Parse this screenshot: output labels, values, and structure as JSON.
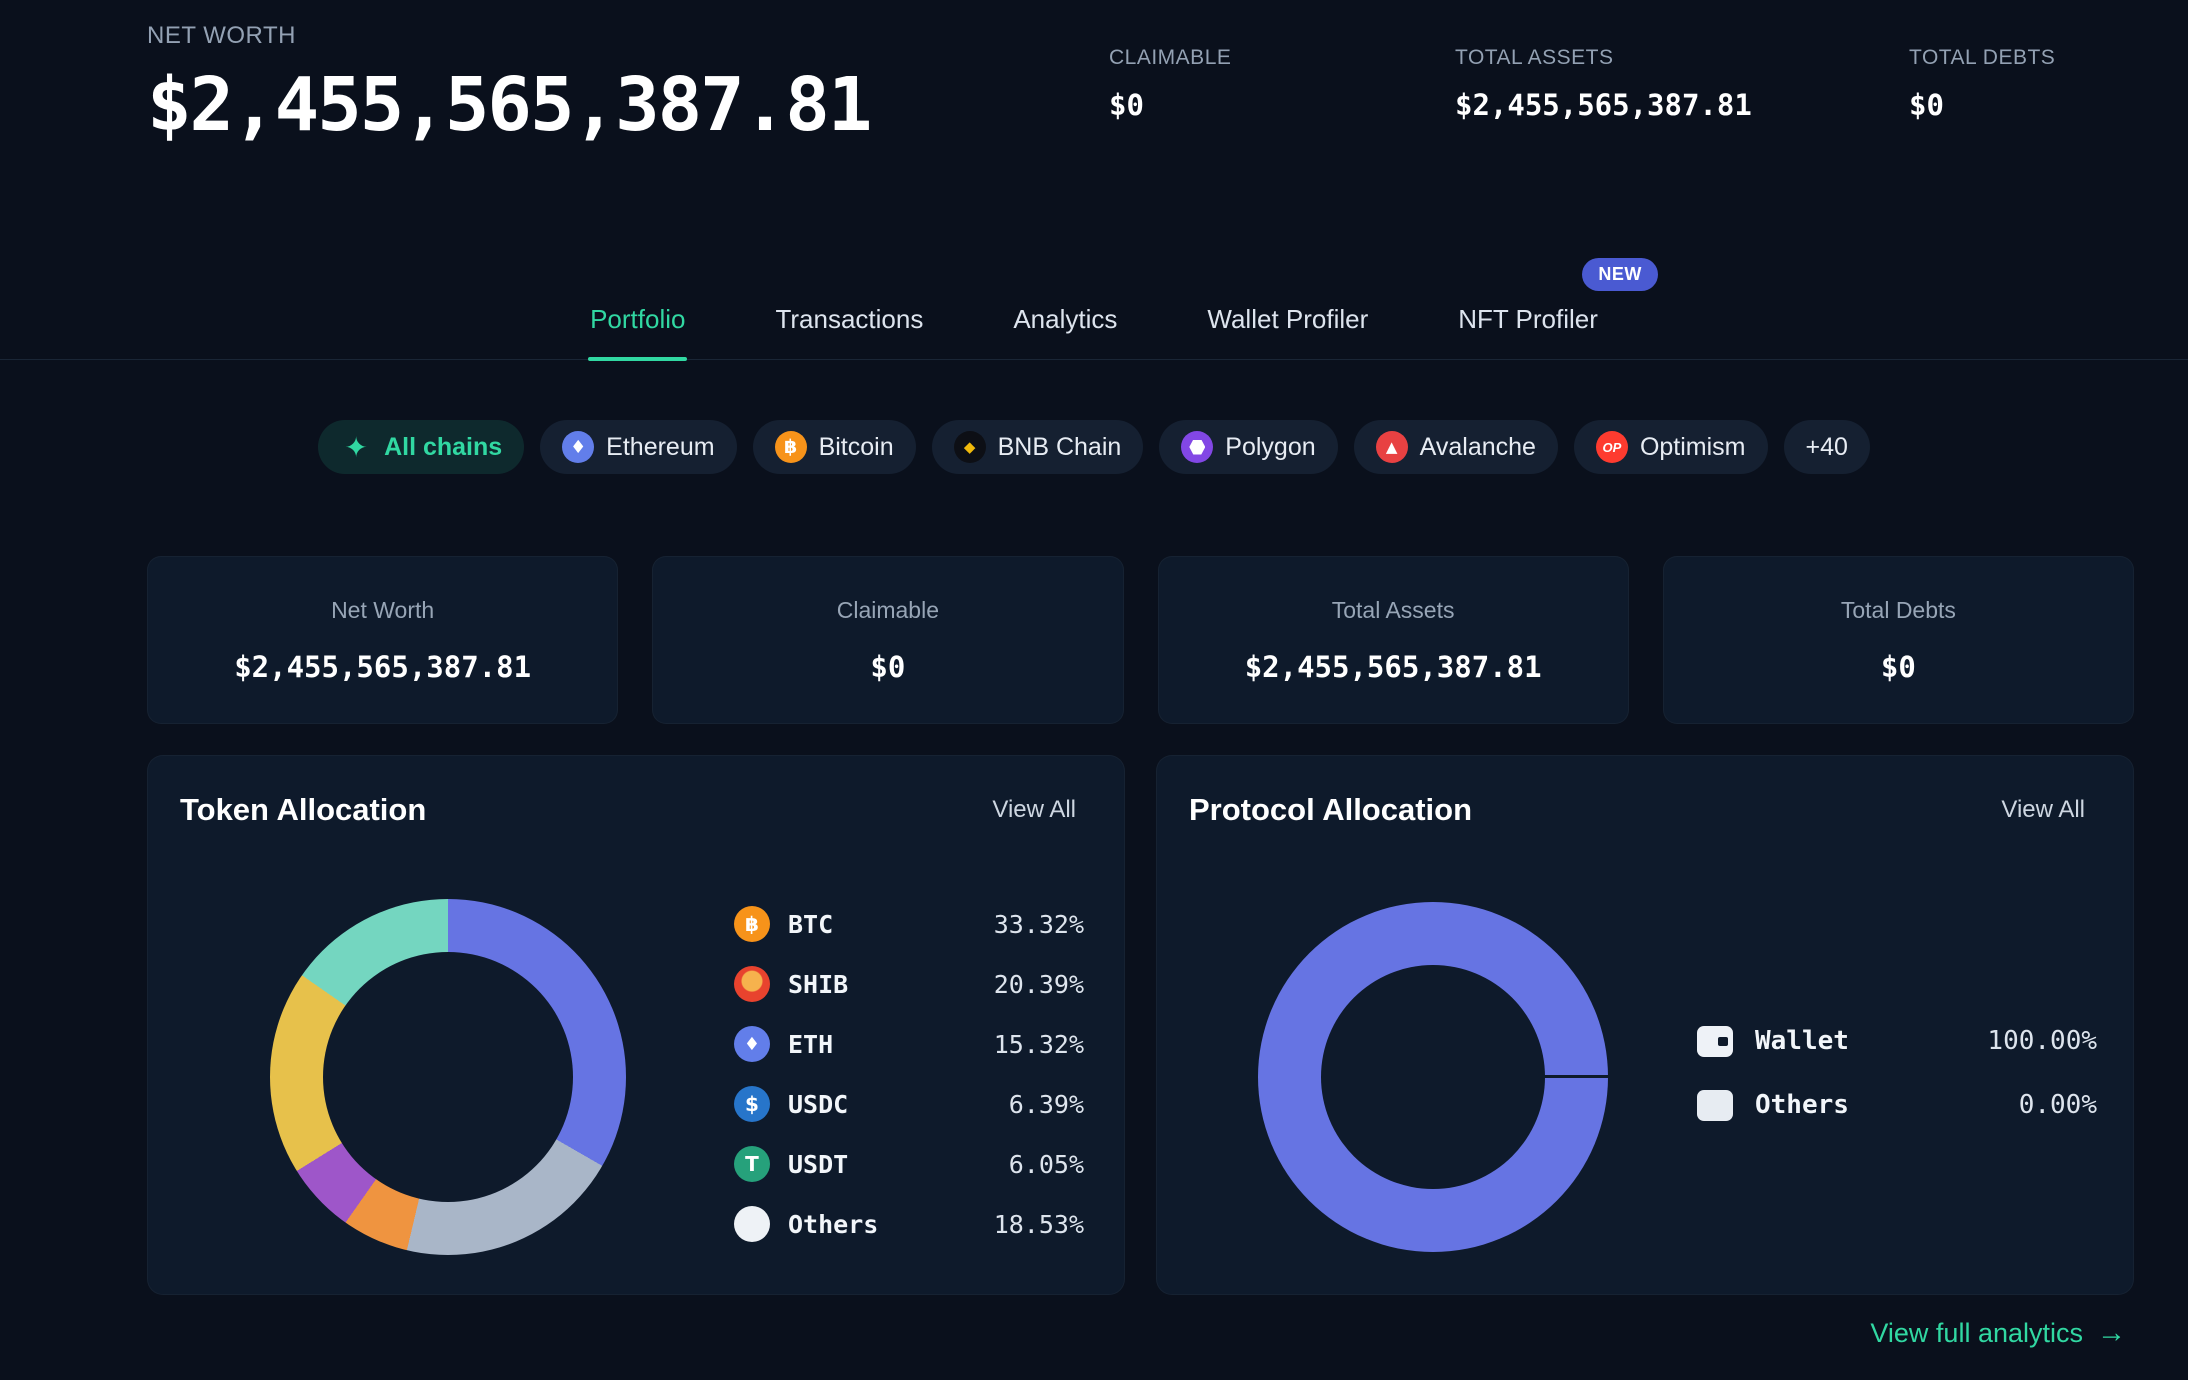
{
  "colors": {
    "background": "#0a101c",
    "card_background": "#0e1a2b",
    "accent_teal": "#31d8a2",
    "badge_blue": "#4a5ad2",
    "text_primary": "#f2f6fa",
    "text_secondary": "#93a1b3"
  },
  "header": {
    "net_worth_label": "NET WORTH",
    "net_worth_value": "$2,455,565,387.81",
    "stats": [
      {
        "label": "CLAIMABLE",
        "value": "$0"
      },
      {
        "label": "TOTAL ASSETS",
        "value": "$2,455,565,387.81"
      },
      {
        "label": "TOTAL DEBTS",
        "value": "$0"
      }
    ]
  },
  "tabs": {
    "items": [
      {
        "label": "Portfolio",
        "active": true
      },
      {
        "label": "Transactions"
      },
      {
        "label": "Analytics"
      },
      {
        "label": "Wallet Profiler"
      },
      {
        "label": "NFT Profiler",
        "badge": "NEW"
      }
    ]
  },
  "chains": {
    "items": [
      {
        "label": "All chains",
        "glyph": "✦",
        "icon_style": "color:#31d8a2;background:transparent",
        "active": true
      },
      {
        "label": "Ethereum",
        "glyph": "♦",
        "icon_style": "background:#627eea;color:#ffffff"
      },
      {
        "label": "Bitcoin",
        "glyph": "฿",
        "icon_style": "background:#f7931a;color:#ffffff"
      },
      {
        "label": "BNB Chain",
        "glyph": "◆",
        "icon_style": "background:#0d0f15;color:#f0b90b"
      },
      {
        "label": "Polygon",
        "icon_style": "background:#8247e5"
      },
      {
        "label": "Avalanche",
        "glyph": "▲",
        "icon_style": "background:#e84142;color:#ffffff"
      },
      {
        "label": "Optimism",
        "glyph": "OP",
        "icon_style": "background:#fe3b2f;color:#ffffff"
      },
      {
        "label": "+40"
      }
    ]
  },
  "summary_cards": [
    {
      "label": "Net Worth",
      "value": "$2,455,565,387.81"
    },
    {
      "label": "Claimable",
      "value": "$0"
    },
    {
      "label": "Total Assets",
      "value": "$2,455,565,387.81"
    },
    {
      "label": "Total Debts",
      "value": "$0"
    }
  ],
  "token_allocation": {
    "title": "Token Allocation",
    "view_all_label": "View All",
    "legend": [
      {
        "symbol": "BTC",
        "percent": "33.32%",
        "glyph": "฿",
        "icon_style": "background:#f7931a;color:#ffffff"
      },
      {
        "symbol": "SHIB",
        "percent": "20.39%",
        "glyph": "",
        "icon_style": "background:radial-gradient(circle at 50% 42%, #f6b24d 0 36%, #e8432e 40%)"
      },
      {
        "symbol": "ETH",
        "percent": "15.32%",
        "glyph": "♦",
        "icon_style": "background:#627eea;color:#ffffff;font-size:18px"
      },
      {
        "symbol": "USDC",
        "percent": "6.39%",
        "glyph": "$",
        "icon_style": "background:#2775ca;color:#ffffff"
      },
      {
        "symbol": "USDT",
        "percent": "6.05%",
        "glyph": "T",
        "icon_style": "background:#26a17b;color:#ffffff"
      },
      {
        "symbol": "Others",
        "percent": "18.53%",
        "glyph": "",
        "icon_style": "background:#eef2f6"
      }
    ],
    "donut": {
      "slices": [
        {
          "label": "BTC",
          "value": 33.32,
          "color": "#6674e3"
        },
        {
          "label": "SHIB",
          "value": 20.39,
          "color": "#a9b6c8"
        },
        {
          "label": "USDT",
          "value": 6.05,
          "color": "#ef9440"
        },
        {
          "label": "USDC",
          "value": 6.39,
          "color": "#9e56c9"
        },
        {
          "label": "Others",
          "value": 18.53,
          "color": "#e7c14b"
        },
        {
          "label": "ETH",
          "value": 15.32,
          "color": "#74d6c0"
        }
      ]
    }
  },
  "protocol_allocation": {
    "title": "Protocol Allocation",
    "view_all_label": "View All",
    "legend": [
      {
        "name": "Wallet",
        "percent": "100.00%"
      },
      {
        "name": "Others",
        "percent": "0.00%"
      }
    ],
    "donut": {
      "slices": [
        {
          "label": "Wallet",
          "value": 100,
          "color": "#6674e3"
        },
        {
          "label": "Others",
          "value": 0,
          "color": "#e4e9f0"
        }
      ]
    }
  },
  "footer": {
    "view_full_analytics_label": "View full analytics",
    "arrow": "→"
  },
  "chart_data": [
    {
      "type": "pie",
      "title": "Token Allocation",
      "labels": [
        "BTC",
        "SHIB",
        "ETH",
        "USDC",
        "USDT",
        "Others"
      ],
      "values": [
        33.32,
        20.39,
        15.32,
        6.39,
        6.05,
        18.53
      ],
      "unit": "%",
      "legend_position": "right"
    },
    {
      "type": "pie",
      "title": "Protocol Allocation",
      "labels": [
        "Wallet",
        "Others"
      ],
      "values": [
        100.0,
        0.0
      ],
      "unit": "%",
      "legend_position": "right"
    }
  ]
}
